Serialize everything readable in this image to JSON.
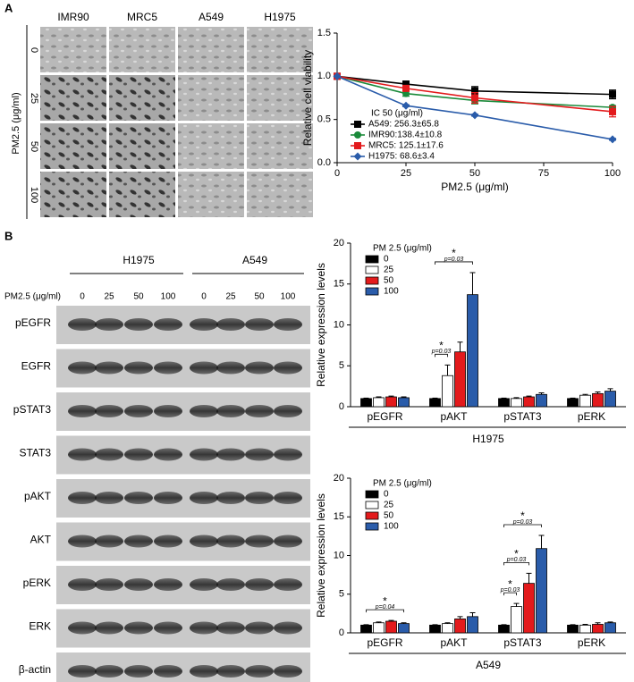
{
  "panels": [
    "A",
    "B"
  ],
  "microscopy": {
    "y_label": "PM2.5 (μg/ml)",
    "columns": [
      "IMR90",
      "MRC5",
      "A549",
      "H1975"
    ],
    "rows": [
      "0",
      "25",
      "50",
      "100"
    ]
  },
  "blot": {
    "dose_label": "PM2.5 (μg/ml)",
    "groups": [
      "H1975",
      "A549"
    ],
    "doses": [
      "0",
      "25",
      "50",
      "100",
      "0",
      "25",
      "50",
      "100"
    ],
    "proteins": [
      "pEGFR",
      "EGFR",
      "pSTAT3",
      "STAT3",
      "pAKT",
      "AKT",
      "pERK",
      "ERK",
      "β-actin"
    ]
  },
  "chart_data": [
    {
      "type": "line",
      "ylabel": "Relative cell viability",
      "xlabel": "PM2.5 (μg/ml)",
      "legend_title": "IC 50 (μg/ml)",
      "x": [
        0,
        25,
        50,
        100
      ],
      "xlim": [
        0,
        100
      ],
      "xticks": [
        0,
        25,
        50,
        75,
        100
      ],
      "ylim": [
        0,
        1.5
      ],
      "yticks": [
        {
          "value": 0,
          "label": "0.0"
        },
        {
          "value": 0.5,
          "label": "0.5"
        },
        {
          "value": 1,
          "label": "1.0"
        },
        {
          "value": 1.5,
          "label": "1.5"
        }
      ],
      "series": [
        {
          "name": "A549: 256.3±65.8",
          "color": "#000000",
          "marker": "square",
          "values": [
            1,
            0.91,
            0.83,
            0.79
          ],
          "errors": [
            0,
            0.03,
            0.05,
            0.05
          ]
        },
        {
          "name": "IMR90:138.4±10.8",
          "color": "#1a8a3a",
          "marker": "circle",
          "values": [
            1,
            0.8,
            0.72,
            0.64
          ],
          "errors": [
            0,
            0.03,
            0.04,
            0.02
          ]
        },
        {
          "name": "MRC5: 125.1±17.6",
          "color": "#e31a1c",
          "marker": "square",
          "values": [
            1,
            0.86,
            0.75,
            0.59
          ],
          "errors": [
            0,
            0.03,
            0.06,
            0.06
          ]
        },
        {
          "name": "H1975: 68.6±3.4",
          "color": "#2a5caa",
          "marker": "diamond",
          "values": [
            1,
            0.66,
            0.55,
            0.27
          ],
          "errors": [
            0,
            0.01,
            0.01,
            0.01
          ]
        }
      ]
    },
    {
      "type": "bar",
      "ylabel": "Relative expression levels",
      "xlabel": "H1975",
      "legend_title": "PM 2.5 (μg/ml)",
      "categories": [
        "pEGFR",
        "pAKT",
        "pSTAT3",
        "pERK"
      ],
      "ylim": [
        0,
        20
      ],
      "yticks": [
        0,
        5,
        10,
        15,
        20
      ],
      "series": [
        {
          "name": "0",
          "color": "#000000",
          "values": [
            1,
            1,
            1,
            1
          ],
          "errors": [
            0.05,
            0.05,
            0.05,
            0.05
          ]
        },
        {
          "name": "25",
          "color": "#ffffff",
          "values": [
            1.1,
            3.8,
            1.0,
            1.4
          ],
          "errors": [
            0.1,
            1.3,
            0.1,
            0.1
          ]
        },
        {
          "name": "50",
          "color": "#e31a1c",
          "values": [
            1.2,
            6.7,
            1.2,
            1.6
          ],
          "errors": [
            0.1,
            1.2,
            0.1,
            0.2
          ]
        },
        {
          "name": "100",
          "color": "#2a5caa",
          "values": [
            1.1,
            13.7,
            1.5,
            1.9
          ],
          "errors": [
            0.1,
            2.7,
            0.2,
            0.3
          ]
        }
      ],
      "annotations": [
        {
          "category": "pAKT",
          "from": "0",
          "to": "25",
          "mark": "*",
          "label": "p=0.03"
        },
        {
          "category": "pAKT",
          "from": "0",
          "to": "100",
          "mark": "*",
          "label": "p=0.03"
        }
      ]
    },
    {
      "type": "bar",
      "ylabel": "Relative expression levels",
      "xlabel": "A549",
      "legend_title": "PM 2.5 (μg/ml)",
      "categories": [
        "pEGFR",
        "pAKT",
        "pSTAT3",
        "pERK"
      ],
      "ylim": [
        0,
        20
      ],
      "yticks": [
        0,
        5,
        10,
        15,
        20
      ],
      "series": [
        {
          "name": "0",
          "color": "#000000",
          "values": [
            1,
            1,
            1,
            1
          ],
          "errors": [
            0.05,
            0.05,
            0.05,
            0.05
          ]
        },
        {
          "name": "25",
          "color": "#ffffff",
          "values": [
            1.3,
            1.2,
            3.4,
            1.0
          ],
          "errors": [
            0.1,
            0.1,
            0.4,
            0.1
          ]
        },
        {
          "name": "50",
          "color": "#e31a1c",
          "values": [
            1.5,
            1.8,
            6.4,
            1.1
          ],
          "errors": [
            0.1,
            0.3,
            1.3,
            0.2
          ]
        },
        {
          "name": "100",
          "color": "#2a5caa",
          "values": [
            1.2,
            2.1,
            10.9,
            1.3
          ],
          "errors": [
            0.1,
            0.5,
            1.7,
            0.1
          ]
        }
      ],
      "annotations": [
        {
          "category": "pEGFR",
          "from": "0",
          "to": "100",
          "mark": "*",
          "label": "p=0.04"
        },
        {
          "category": "pSTAT3",
          "from": "0",
          "to": "25",
          "mark": "*",
          "label": "p=0.03"
        },
        {
          "category": "pSTAT3",
          "from": "0",
          "to": "50",
          "mark": "*",
          "label": "p=0.03"
        },
        {
          "category": "pSTAT3",
          "from": "0",
          "to": "100",
          "mark": "*",
          "label": "p=0.03"
        }
      ]
    }
  ]
}
